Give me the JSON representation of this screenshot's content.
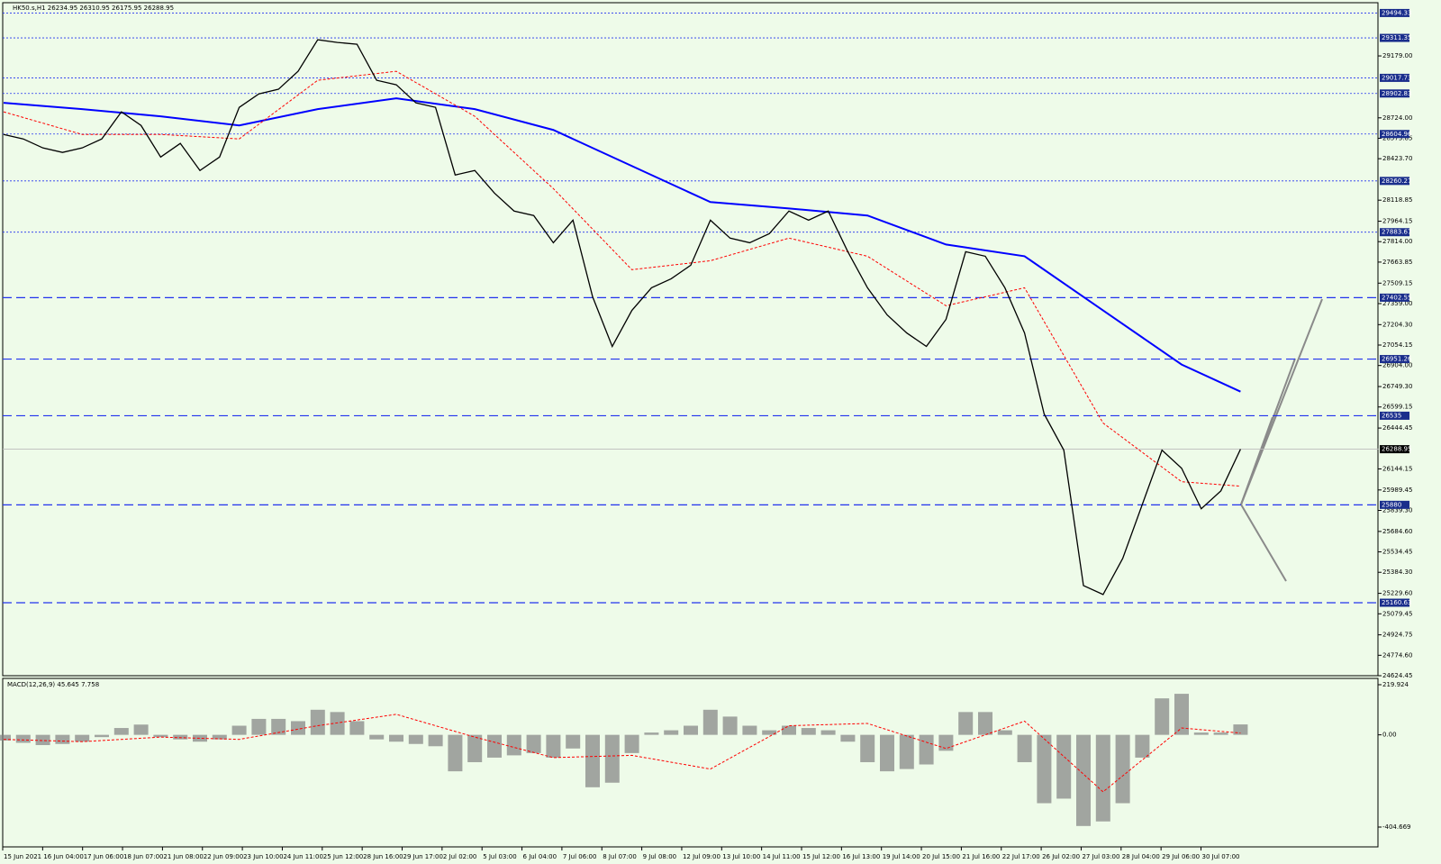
{
  "chart_data": [
    {
      "type": "price",
      "title": "HK50.s,H1  26234.95 26310.95 26175.95 26288.95",
      "categories": [
        "15 Jun 2021",
        "16 Jun 04:00",
        "17 Jun 06:00",
        "18 Jun 07:00",
        "21 Jun 08:00",
        "22 Jun 09:00",
        "23 Jun 10:00",
        "24 Jun 11:00",
        "25 Jun 12:00",
        "28 Jun 16:00",
        "29 Jun 17:00",
        "2 Jul 02:00",
        "5 Jul 03:00",
        "6 Jul 04:00",
        "7 Jul 06:00",
        "8 Jul 07:00",
        "9 Jul 08:00",
        "12 Jul 09:00",
        "13 Jul 10:00",
        "14 Jul 11:00",
        "15 Jul 12:00",
        "16 Jul 13:00",
        "19 Jul 14:00",
        "20 Jul 15:00",
        "21 Jul 16:00",
        "22 Jul 17:00",
        "26 Jul 02:00",
        "27 Jul 03:00",
        "28 Jul 04:00",
        "29 Jul 06:00",
        "30 Jul 07:00"
      ],
      "close": {
        "color": "#000000",
        "values": [
          28602,
          28569,
          28503,
          28470,
          28503,
          28569,
          28768,
          28668,
          28436,
          28536,
          28337,
          28436,
          28801,
          28900,
          28934,
          29066,
          29298,
          29278,
          29265,
          29000,
          28967,
          28834,
          28801,
          28304,
          28337,
          28171,
          28039,
          28006,
          27806,
          27972,
          27409,
          27044,
          27309,
          27475,
          27541,
          27641,
          27972,
          27840,
          27806,
          27873,
          28039,
          27972,
          28039,
          27740,
          27475,
          27276,
          27143,
          27044,
          27243,
          27740,
          27707,
          27475,
          27143,
          26547,
          26282,
          25287,
          25221,
          25486,
          25884,
          26282,
          26149,
          25851,
          25983,
          26288.95
        ]
      },
      "series": [
        {
          "color": "#0000ff",
          "x": [
            0,
            4,
            8,
            12,
            16,
            20,
            24,
            28,
            32,
            36,
            40,
            44,
            48,
            52,
            56,
            60,
            63
          ],
          "values": [
            28834,
            28788,
            28735,
            28668,
            28788,
            28867,
            28788,
            28635,
            28370,
            28105,
            28058,
            28006,
            27793,
            27707,
            27309,
            26911,
            26712
          ]
        },
        {
          "color": "#ff0000",
          "x": [
            0,
            4,
            8,
            12,
            16,
            20,
            24,
            28,
            32,
            36,
            40,
            44,
            48,
            52,
            56,
            60,
            63
          ],
          "values": [
            28768,
            28602,
            28602,
            28569,
            29000,
            29066,
            28735,
            28204,
            27608,
            27674,
            27840,
            27707,
            27343,
            27475,
            26481,
            26050,
            26017
          ]
        }
      ],
      "dotted_levels": [
        29494.33,
        29311.35,
        29017.73,
        28902.83,
        28604.96,
        28260.27,
        27883.67
      ],
      "dashed_levels": [
        27402.55,
        26951.26,
        26535,
        25880,
        25160.63
      ],
      "current_price": 26288.95,
      "ylim": [
        24624.45,
        29570
      ],
      "yticks": [
        {
          "value": 29179,
          "label": "29179.00"
        },
        {
          "value": 28724,
          "label": "28724.00"
        },
        28573.85,
        {
          "value": 28423.7,
          "label": "28423.70"
        },
        28118.85,
        27964.15,
        {
          "value": 27814,
          "label": "27814.00"
        },
        27663.85,
        27509.15,
        {
          "value": 27359,
          "label": "27359.00"
        },
        {
          "value": 27204.3,
          "label": "27204.30"
        },
        27054.15,
        {
          "value": 26904,
          "label": "26904.00"
        },
        {
          "value": 26749.3,
          "label": "26749.30"
        },
        26599.15,
        26444.45,
        26144.15,
        25989.45,
        {
          "value": 25839.3,
          "label": "25839.30"
        },
        {
          "value": 25684.6,
          "label": "25684.60"
        },
        25534.45,
        {
          "value": 25384.3,
          "label": "25384.30"
        },
        {
          "value": 25229.6,
          "label": "25229.60"
        },
        25079.45,
        24924.75,
        {
          "value": 24774.6,
          "label": "24774.60"
        },
        24624.45
      ]
    },
    {
      "type": "macd",
      "title": "MACD(12,26,9) 45.645 7.758",
      "values": [
        -25,
        -35,
        -45,
        -40,
        -30,
        -10,
        30,
        45,
        -10,
        -20,
        -30,
        -20,
        40,
        70,
        70,
        60,
        110,
        100,
        60,
        -20,
        -30,
        -40,
        -50,
        -160,
        -120,
        -100,
        -90,
        -80,
        -100,
        -60,
        -230,
        -210,
        -80,
        10,
        20,
        40,
        110,
        80,
        40,
        20,
        40,
        30,
        20,
        -30,
        -120,
        -160,
        -150,
        -130,
        -70,
        100,
        100,
        20,
        -120,
        -300,
        -280,
        -400,
        -380,
        -300,
        -100,
        160,
        180,
        10,
        10,
        45.645
      ],
      "color": "#808080",
      "signal": {
        "color": "#ff0000",
        "x": [
          0,
          4,
          8,
          12,
          16,
          20,
          24,
          28,
          32,
          36,
          40,
          44,
          48,
          52,
          56,
          60,
          63
        ],
        "values": [
          -20,
          -30,
          -10,
          -20,
          40,
          90,
          -10,
          -100,
          -90,
          -150,
          40,
          50,
          -60,
          60,
          -250,
          30,
          7.758
        ]
      },
      "ylim": [
        -404.669,
        219.924
      ],
      "yticks": [
        219.924,
        {
          "value": 0,
          "label": "0.00"
        },
        -404.669
      ]
    }
  ]
}
